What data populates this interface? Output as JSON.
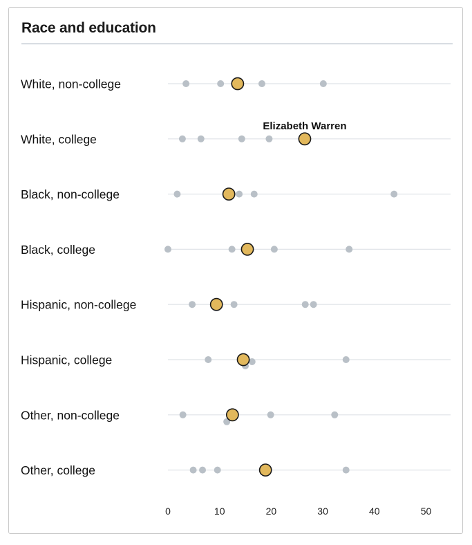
{
  "chart_data": {
    "type": "scatter",
    "title": "Race and education",
    "highlight_series": "Elizabeth Warren",
    "colors": {
      "highlight": "#e2b85c",
      "highlight_stroke": "#1a1a1a",
      "other": "#b9c0c7",
      "rule": "#dfe3e7"
    },
    "xlim": [
      0,
      55
    ],
    "xticks": [
      0,
      10,
      20,
      30,
      40,
      50
    ],
    "annotation": {
      "text": "Elizabeth Warren",
      "row": 1
    },
    "rows": [
      {
        "label": "White, non-college",
        "highlight": 13.5,
        "others": [
          {
            "x": 3.5,
            "dy": 0
          },
          {
            "x": 10.2,
            "dy": 0
          },
          {
            "x": 18.2,
            "dy": 0
          },
          {
            "x": 30.1,
            "dy": 0
          }
        ]
      },
      {
        "label": "White, college",
        "highlight": 26.5,
        "others": [
          {
            "x": 2.8,
            "dy": 0
          },
          {
            "x": 6.4,
            "dy": 0
          },
          {
            "x": 14.3,
            "dy": 0
          },
          {
            "x": 19.6,
            "dy": 0
          }
        ]
      },
      {
        "label": "Black, non-college",
        "highlight": 11.8,
        "others": [
          {
            "x": 1.8,
            "dy": 0
          },
          {
            "x": 13.8,
            "dy": 0
          },
          {
            "x": 16.7,
            "dy": 0
          },
          {
            "x": 43.8,
            "dy": 0
          }
        ]
      },
      {
        "label": "Black, college",
        "highlight": 15.4,
        "others": [
          {
            "x": 0.0,
            "dy": 0
          },
          {
            "x": 12.4,
            "dy": 0
          },
          {
            "x": 20.6,
            "dy": 0
          },
          {
            "x": 35.1,
            "dy": 0
          }
        ]
      },
      {
        "label": "Hispanic, non-college",
        "highlight": 9.4,
        "others": [
          {
            "x": 4.7,
            "dy": 0
          },
          {
            "x": 12.8,
            "dy": 0
          },
          {
            "x": 26.6,
            "dy": 0
          },
          {
            "x": 28.2,
            "dy": 0
          }
        ]
      },
      {
        "label": "Hispanic, college",
        "highlight": 14.6,
        "others": [
          {
            "x": 7.8,
            "dy": 0
          },
          {
            "x": 15.0,
            "dy": 9
          },
          {
            "x": 16.3,
            "dy": 3
          },
          {
            "x": 34.5,
            "dy": 0
          }
        ]
      },
      {
        "label": "Other, non-college",
        "highlight": 12.5,
        "others": [
          {
            "x": 2.9,
            "dy": 0
          },
          {
            "x": 11.4,
            "dy": 10
          },
          {
            "x": 19.9,
            "dy": 0
          },
          {
            "x": 32.3,
            "dy": 0
          }
        ]
      },
      {
        "label": "Other, college",
        "highlight": 18.9,
        "others": [
          {
            "x": 4.9,
            "dy": 0
          },
          {
            "x": 6.7,
            "dy": 0
          },
          {
            "x": 9.6,
            "dy": 0
          },
          {
            "x": 34.5,
            "dy": 0
          }
        ]
      }
    ]
  }
}
